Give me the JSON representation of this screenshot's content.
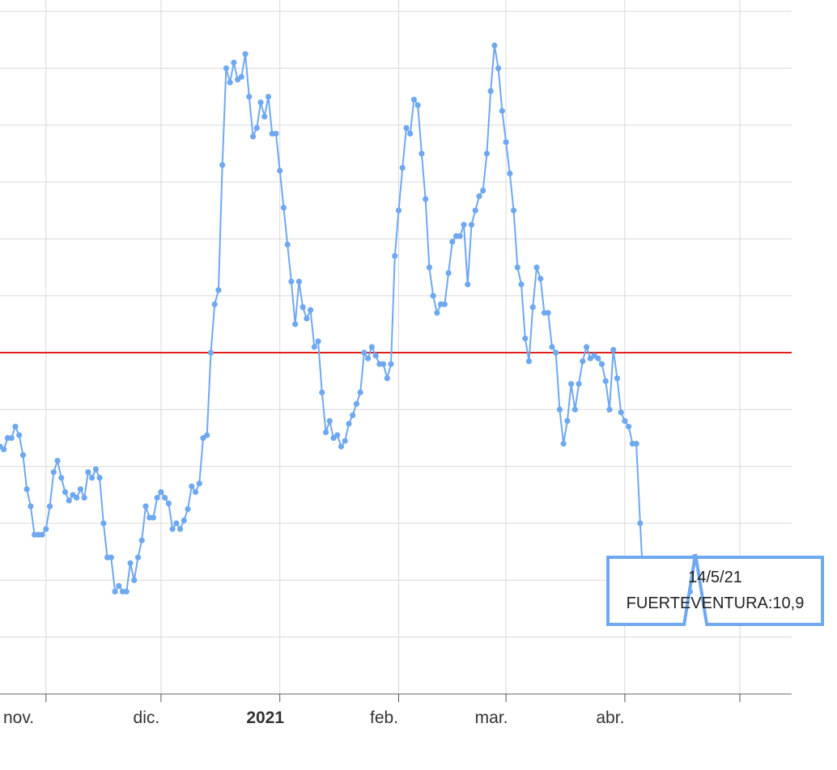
{
  "chart_data": {
    "type": "line",
    "title": "",
    "xlabel": "",
    "ylabel": "",
    "x_start_date": "2020-10-20",
    "x_end_date": "2021-05-14",
    "xlim": [
      "2020-10-20",
      "2021-05-16"
    ],
    "ylim": [
      8.5,
      20.7
    ],
    "grid": true,
    "x_ticks": [
      {
        "date": "2020-11-01",
        "label": "nov.",
        "bold": false
      },
      {
        "date": "2020-12-01",
        "label": "dic.",
        "bold": false
      },
      {
        "date": "2021-01-01",
        "label": "2021",
        "bold": true
      },
      {
        "date": "2021-02-01",
        "label": "feb.",
        "bold": false
      },
      {
        "date": "2021-03-01",
        "label": "mar.",
        "bold": false
      },
      {
        "date": "2021-04-01",
        "label": "abr.",
        "bold": false
      },
      {
        "date": "2021-05-01",
        "label": "",
        "bold": false
      }
    ],
    "y_gridlines": [
      9.5,
      10.5,
      11.5,
      12.5,
      13.5,
      14.5,
      15.5,
      16.5,
      17.5,
      18.5,
      19.5,
      20.5
    ],
    "reference_line": {
      "value": 14.5,
      "color": "#e0201b"
    },
    "series": [
      {
        "name": "FUERTEVENTURA",
        "color": "#6ea8f0",
        "values": [
          12.85,
          12.8,
          13.0,
          13.0,
          13.2,
          13.05,
          12.7,
          12.1,
          11.8,
          11.3,
          11.3,
          11.3,
          11.4,
          11.8,
          12.4,
          12.6,
          12.3,
          12.05,
          11.9,
          12.0,
          11.95,
          12.1,
          11.95,
          12.4,
          12.3,
          12.45,
          12.3,
          11.5,
          10.9,
          10.9,
          10.3,
          10.4,
          10.3,
          10.3,
          10.8,
          10.5,
          10.9,
          11.2,
          11.8,
          11.6,
          11.6,
          11.95,
          12.05,
          11.95,
          11.85,
          11.4,
          11.5,
          11.4,
          11.55,
          11.75,
          12.15,
          12.05,
          12.2,
          13.0,
          13.05,
          14.5,
          15.35,
          15.6,
          17.8,
          19.5,
          19.25,
          19.6,
          19.3,
          19.35,
          19.75,
          19.0,
          18.3,
          18.45,
          18.9,
          18.65,
          19.0,
          18.35,
          18.35,
          17.7,
          17.05,
          16.4,
          15.75,
          15.0,
          15.75,
          15.3,
          15.1,
          15.25,
          14.6,
          14.7,
          13.8,
          13.1,
          13.3,
          13.0,
          13.05,
          12.85,
          12.95,
          13.25,
          13.4,
          13.6,
          13.8,
          14.5,
          14.4,
          14.6,
          14.45,
          14.3,
          14.3,
          14.05,
          14.3,
          16.2,
          17.0,
          17.75,
          18.45,
          18.35,
          18.95,
          18.85,
          18.0,
          17.2,
          16.0,
          15.5,
          15.2,
          15.35,
          15.35,
          15.9,
          16.45,
          16.55,
          16.55,
          16.75,
          15.7,
          16.75,
          17.0,
          17.25,
          17.35,
          18.0,
          19.1,
          19.9,
          19.5,
          18.75,
          18.2,
          17.65,
          17.0,
          16.0,
          15.7,
          14.75,
          14.35,
          15.3,
          16.0,
          15.8,
          15.2,
          15.2,
          14.6,
          14.5,
          13.5,
          12.9,
          13.3,
          13.95,
          13.5,
          13.95,
          14.35,
          14.6,
          14.4,
          14.45,
          14.4,
          14.3,
          14.0,
          13.5,
          14.55,
          14.05,
          13.45,
          13.3,
          13.2,
          12.9,
          12.9,
          11.5,
          10.2,
          10.1,
          10.3,
          10.3,
          10.5,
          10.5,
          10.5,
          10.6,
          10.5,
          10.3,
          10.5,
          10.4,
          10.3,
          10.9
        ]
      }
    ],
    "tooltip": {
      "date_label": "14/5/21",
      "series_label": "FUERTEVENTURA",
      "value_label": "10,9",
      "text": "FUERTEVENTURA:10,9"
    }
  }
}
